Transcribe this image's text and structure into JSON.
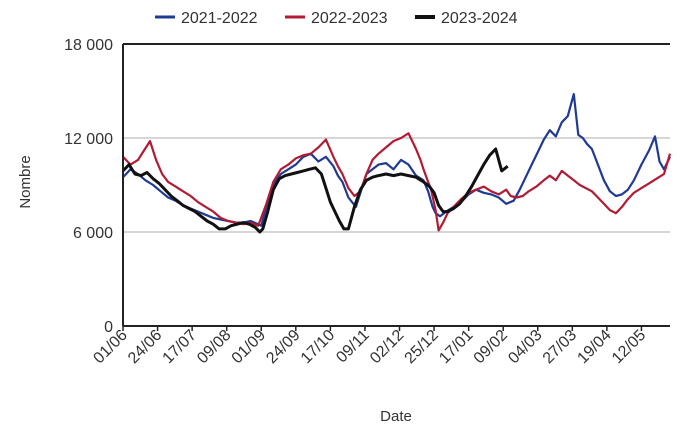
{
  "chart_data": {
    "type": "line",
    "xlabel": "Date",
    "ylabel": "Nombre",
    "ylim": [
      0,
      18000
    ],
    "x_range_days": [
      0,
      364
    ],
    "y_ticks": [
      {
        "value": 0,
        "label": "0"
      },
      {
        "value": 6000,
        "label": "6 000"
      },
      {
        "value": 12000,
        "label": "12 000"
      },
      {
        "value": 18000,
        "label": "18 000"
      }
    ],
    "x_ticks": [
      {
        "date": "01/06",
        "day": 0
      },
      {
        "date": "24/06",
        "day": 23
      },
      {
        "date": "17/07",
        "day": 46
      },
      {
        "date": "09/08",
        "day": 69
      },
      {
        "date": "01/09",
        "day": 92
      },
      {
        "date": "24/09",
        "day": 115
      },
      {
        "date": "17/10",
        "day": 138
      },
      {
        "date": "09/11",
        "day": 161
      },
      {
        "date": "02/12",
        "day": 184
      },
      {
        "date": "25/12",
        "day": 207
      },
      {
        "date": "17/01",
        "day": 230
      },
      {
        "date": "09/02",
        "day": 253
      },
      {
        "date": "04/03",
        "day": 276
      },
      {
        "date": "27/03",
        "day": 299
      },
      {
        "date": "19/04",
        "day": 322
      },
      {
        "date": "12/05",
        "day": 345
      }
    ],
    "grid": "horizontal",
    "legend_position": "top",
    "series": [
      {
        "name": "2021-2022",
        "color": "#1f3a93",
        "points": [
          [
            0,
            9500
          ],
          [
            5,
            10000
          ],
          [
            10,
            9700
          ],
          [
            15,
            9300
          ],
          [
            20,
            9000
          ],
          [
            25,
            8600
          ],
          [
            30,
            8200
          ],
          [
            35,
            8000
          ],
          [
            40,
            7700
          ],
          [
            45,
            7500
          ],
          [
            50,
            7300
          ],
          [
            55,
            7100
          ],
          [
            60,
            6900
          ],
          [
            65,
            6800
          ],
          [
            70,
            6700
          ],
          [
            75,
            6600
          ],
          [
            80,
            6600
          ],
          [
            85,
            6700
          ],
          [
            90,
            6500
          ],
          [
            92,
            6400
          ],
          [
            95,
            7500
          ],
          [
            100,
            9000
          ],
          [
            105,
            9700
          ],
          [
            110,
            10000
          ],
          [
            115,
            10300
          ],
          [
            120,
            10800
          ],
          [
            125,
            11000
          ],
          [
            130,
            10500
          ],
          [
            135,
            10800
          ],
          [
            140,
            10200
          ],
          [
            143,
            9600
          ],
          [
            146,
            9200
          ],
          [
            150,
            8200
          ],
          [
            155,
            7600
          ],
          [
            158,
            8500
          ],
          [
            162,
            9700
          ],
          [
            166,
            10000
          ],
          [
            170,
            10300
          ],
          [
            175,
            10400
          ],
          [
            180,
            10000
          ],
          [
            185,
            10600
          ],
          [
            190,
            10300
          ],
          [
            195,
            9600
          ],
          [
            200,
            9300
          ],
          [
            203,
            8600
          ],
          [
            206,
            7600
          ],
          [
            208,
            7200
          ],
          [
            211,
            7000
          ],
          [
            215,
            7300
          ],
          [
            220,
            7600
          ],
          [
            225,
            7900
          ],
          [
            230,
            8400
          ],
          [
            235,
            8700
          ],
          [
            240,
            8500
          ],
          [
            245,
            8400
          ],
          [
            250,
            8200
          ],
          [
            255,
            7800
          ],
          [
            260,
            8000
          ],
          [
            264,
            8700
          ],
          [
            268,
            9500
          ],
          [
            272,
            10300
          ],
          [
            276,
            11100
          ],
          [
            280,
            11900
          ],
          [
            284,
            12500
          ],
          [
            288,
            12100
          ],
          [
            292,
            13000
          ],
          [
            296,
            13400
          ],
          [
            300,
            14800
          ],
          [
            303,
            12200
          ],
          [
            306,
            12000
          ],
          [
            309,
            11600
          ],
          [
            312,
            11300
          ],
          [
            316,
            10300
          ],
          [
            320,
            9300
          ],
          [
            324,
            8600
          ],
          [
            328,
            8300
          ],
          [
            332,
            8400
          ],
          [
            336,
            8700
          ],
          [
            340,
            9300
          ],
          [
            345,
            10300
          ],
          [
            350,
            11200
          ],
          [
            354,
            12100
          ],
          [
            357,
            10500
          ],
          [
            360,
            10000
          ],
          [
            364,
            10800
          ]
        ]
      },
      {
        "name": "2022-2023",
        "color": "#b01c34",
        "points": [
          [
            0,
            10800
          ],
          [
            5,
            10300
          ],
          [
            10,
            10600
          ],
          [
            14,
            11200
          ],
          [
            18,
            11800
          ],
          [
            22,
            10600
          ],
          [
            26,
            9700
          ],
          [
            30,
            9200
          ],
          [
            35,
            8900
          ],
          [
            40,
            8600
          ],
          [
            45,
            8300
          ],
          [
            50,
            7900
          ],
          [
            55,
            7600
          ],
          [
            60,
            7300
          ],
          [
            65,
            6900
          ],
          [
            70,
            6700
          ],
          [
            75,
            6600
          ],
          [
            80,
            6500
          ],
          [
            85,
            6600
          ],
          [
            90,
            6400
          ],
          [
            95,
            7700
          ],
          [
            100,
            9200
          ],
          [
            105,
            10000
          ],
          [
            110,
            10300
          ],
          [
            115,
            10700
          ],
          [
            120,
            10900
          ],
          [
            125,
            11000
          ],
          [
            130,
            11400
          ],
          [
            135,
            11900
          ],
          [
            140,
            10800
          ],
          [
            143,
            10200
          ],
          [
            146,
            9700
          ],
          [
            150,
            8800
          ],
          [
            154,
            8300
          ],
          [
            158,
            8600
          ],
          [
            162,
            9700
          ],
          [
            166,
            10600
          ],
          [
            170,
            11000
          ],
          [
            175,
            11400
          ],
          [
            180,
            11800
          ],
          [
            185,
            12000
          ],
          [
            190,
            12300
          ],
          [
            195,
            11300
          ],
          [
            198,
            10600
          ],
          [
            200,
            10000
          ],
          [
            203,
            9200
          ],
          [
            205,
            8700
          ],
          [
            208,
            7400
          ],
          [
            210,
            6100
          ],
          [
            213,
            6600
          ],
          [
            216,
            7200
          ],
          [
            220,
            7600
          ],
          [
            225,
            8100
          ],
          [
            230,
            8500
          ],
          [
            235,
            8700
          ],
          [
            240,
            8900
          ],
          [
            245,
            8600
          ],
          [
            250,
            8400
          ],
          [
            255,
            8700
          ],
          [
            258,
            8300
          ],
          [
            262,
            8200
          ],
          [
            266,
            8300
          ],
          [
            270,
            8600
          ],
          [
            275,
            8900
          ],
          [
            280,
            9300
          ],
          [
            284,
            9600
          ],
          [
            288,
            9300
          ],
          [
            292,
            9900
          ],
          [
            296,
            9600
          ],
          [
            300,
            9300
          ],
          [
            304,
            9000
          ],
          [
            308,
            8800
          ],
          [
            312,
            8600
          ],
          [
            316,
            8200
          ],
          [
            320,
            7800
          ],
          [
            324,
            7400
          ],
          [
            328,
            7200
          ],
          [
            332,
            7600
          ],
          [
            336,
            8100
          ],
          [
            340,
            8500
          ],
          [
            345,
            8800
          ],
          [
            350,
            9100
          ],
          [
            355,
            9400
          ],
          [
            360,
            9700
          ],
          [
            364,
            11000
          ]
        ]
      },
      {
        "name": "2023-2024",
        "color": "#111111",
        "points": [
          [
            0,
            9900
          ],
          [
            4,
            10300
          ],
          [
            8,
            9700
          ],
          [
            12,
            9600
          ],
          [
            16,
            9800
          ],
          [
            20,
            9400
          ],
          [
            24,
            9100
          ],
          [
            28,
            8700
          ],
          [
            32,
            8300
          ],
          [
            36,
            8000
          ],
          [
            40,
            7700
          ],
          [
            44,
            7500
          ],
          [
            48,
            7300
          ],
          [
            52,
            7000
          ],
          [
            56,
            6700
          ],
          [
            60,
            6500
          ],
          [
            64,
            6200
          ],
          [
            68,
            6200
          ],
          [
            72,
            6400
          ],
          [
            76,
            6500
          ],
          [
            80,
            6600
          ],
          [
            84,
            6500
          ],
          [
            88,
            6300
          ],
          [
            91,
            6000
          ],
          [
            93,
            6200
          ],
          [
            96,
            7200
          ],
          [
            100,
            8700
          ],
          [
            104,
            9400
          ],
          [
            108,
            9600
          ],
          [
            112,
            9700
          ],
          [
            116,
            9800
          ],
          [
            120,
            9900
          ],
          [
            124,
            10000
          ],
          [
            128,
            10100
          ],
          [
            132,
            9700
          ],
          [
            135,
            8800
          ],
          [
            138,
            7900
          ],
          [
            141,
            7300
          ],
          [
            144,
            6700
          ],
          [
            147,
            6200
          ],
          [
            150,
            6200
          ],
          [
            154,
            7600
          ],
          [
            158,
            8700
          ],
          [
            162,
            9300
          ],
          [
            166,
            9500
          ],
          [
            170,
            9600
          ],
          [
            175,
            9700
          ],
          [
            180,
            9600
          ],
          [
            185,
            9700
          ],
          [
            190,
            9600
          ],
          [
            195,
            9500
          ],
          [
            200,
            9200
          ],
          [
            204,
            8900
          ],
          [
            207,
            8500
          ],
          [
            210,
            7700
          ],
          [
            213,
            7300
          ],
          [
            216,
            7300
          ],
          [
            220,
            7500
          ],
          [
            224,
            7800
          ],
          [
            228,
            8300
          ],
          [
            232,
            8900
          ],
          [
            236,
            9600
          ],
          [
            240,
            10300
          ],
          [
            244,
            10900
          ],
          [
            248,
            11300
          ],
          [
            252,
            9900
          ],
          [
            256,
            10200
          ]
        ]
      }
    ]
  }
}
